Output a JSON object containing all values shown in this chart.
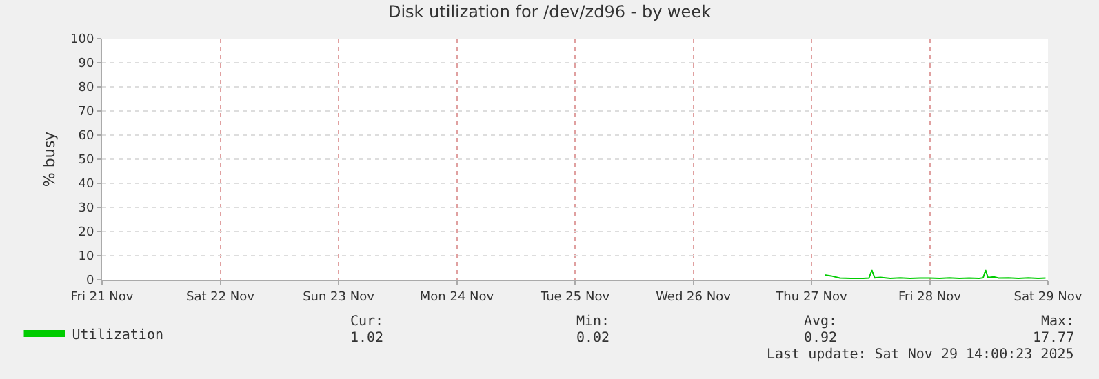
{
  "chart_data": {
    "type": "line",
    "title": "Disk utilization for /dev/zd96 - by week",
    "ylabel": "% busy",
    "x": [
      "2025-11-27T02:40",
      "2025-11-27T04:00",
      "2025-11-27T05:45",
      "2025-11-27T08:00",
      "2025-11-27T10:30",
      "2025-11-27T11:40",
      "2025-11-27T12:15",
      "2025-11-27T12:50",
      "2025-11-27T14:00",
      "2025-11-27T16:00",
      "2025-11-27T18:00",
      "2025-11-27T20:00",
      "2025-11-27T22:00",
      "2025-11-28T00:00",
      "2025-11-28T02:00",
      "2025-11-28T04:00",
      "2025-11-28T06:00",
      "2025-11-28T08:00",
      "2025-11-28T10:00",
      "2025-11-28T10:50",
      "2025-11-28T11:20",
      "2025-11-28T11:50",
      "2025-11-28T13:00",
      "2025-11-28T14:00",
      "2025-11-28T16:00",
      "2025-11-28T18:00",
      "2025-11-28T20:00",
      "2025-11-28T22:00",
      "2025-11-28T23:30"
    ],
    "series": [
      {
        "name": "Utilization",
        "color": "#00cc00",
        "values": [
          2.0,
          1.6,
          0.7,
          0.6,
          0.6,
          0.7,
          4.0,
          0.8,
          1.0,
          0.6,
          0.8,
          0.6,
          0.7,
          0.7,
          0.6,
          0.8,
          0.6,
          0.7,
          0.6,
          0.8,
          4.0,
          0.9,
          1.2,
          0.7,
          0.8,
          0.6,
          0.8,
          0.6,
          0.7
        ]
      }
    ],
    "xlim": [
      "2025-11-21T00:00",
      "2025-11-29T00:00"
    ],
    "xticks": [
      {
        "value": "2025-11-21",
        "label": "Fri 21 Nov"
      },
      {
        "value": "2025-11-22",
        "label": "Sat 22 Nov"
      },
      {
        "value": "2025-11-23",
        "label": "Sun 23 Nov"
      },
      {
        "value": "2025-11-24",
        "label": "Mon 24 Nov"
      },
      {
        "value": "2025-11-25",
        "label": "Tue 25 Nov"
      },
      {
        "value": "2025-11-26",
        "label": "Wed 26 Nov"
      },
      {
        "value": "2025-11-27",
        "label": "Thu 27 Nov"
      },
      {
        "value": "2025-11-28",
        "label": "Fri 28 Nov"
      },
      {
        "value": "2025-11-29",
        "label": "Sat 29 Nov"
      }
    ],
    "ylim": [
      0,
      100
    ],
    "yticks": [
      0,
      10,
      20,
      30,
      40,
      50,
      60,
      70,
      80,
      90,
      100
    ],
    "grid": true,
    "legend": "bottom left",
    "marker": "none",
    "line_style": "solid",
    "annotations": [
      "Cur:",
      "Min:",
      "Avg:",
      "Max:",
      "1.02",
      "0.02",
      "0.92",
      "17.77",
      "Last update: Sat Nov 29 14:00:23 2025"
    ]
  }
}
